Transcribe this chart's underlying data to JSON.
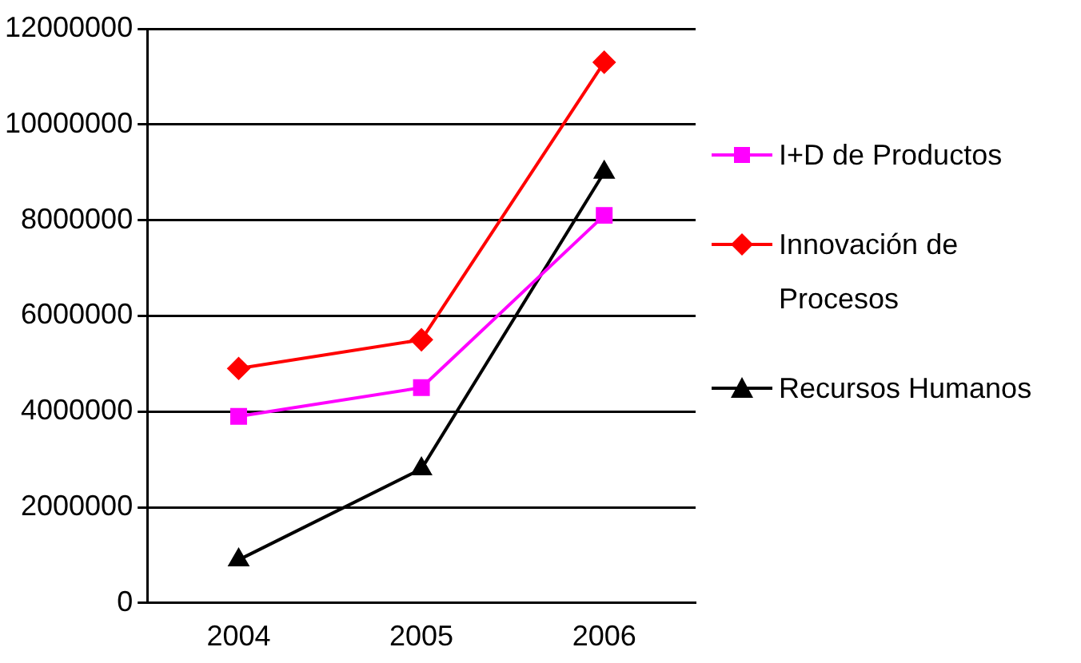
{
  "chart_data": {
    "type": "line",
    "categories": [
      "2004",
      "2005",
      "2006"
    ],
    "series": [
      {
        "name": "I+D de Productos",
        "color": "#ff00ff",
        "marker": "square",
        "values": [
          3900000,
          4500000,
          8100000
        ]
      },
      {
        "name": "Innovación de Procesos",
        "color": "#ff0000",
        "marker": "diamond",
        "values": [
          4900000,
          5500000,
          11300000
        ]
      },
      {
        "name": "Recursos Humanos",
        "color": "#000000",
        "marker": "triangle",
        "values": [
          900000,
          2800000,
          9000000
        ]
      }
    ],
    "ylim": [
      0,
      12000000
    ],
    "yticks": [
      0,
      2000000,
      4000000,
      6000000,
      8000000,
      10000000,
      12000000
    ],
    "grid": "y",
    "legend": "right"
  }
}
